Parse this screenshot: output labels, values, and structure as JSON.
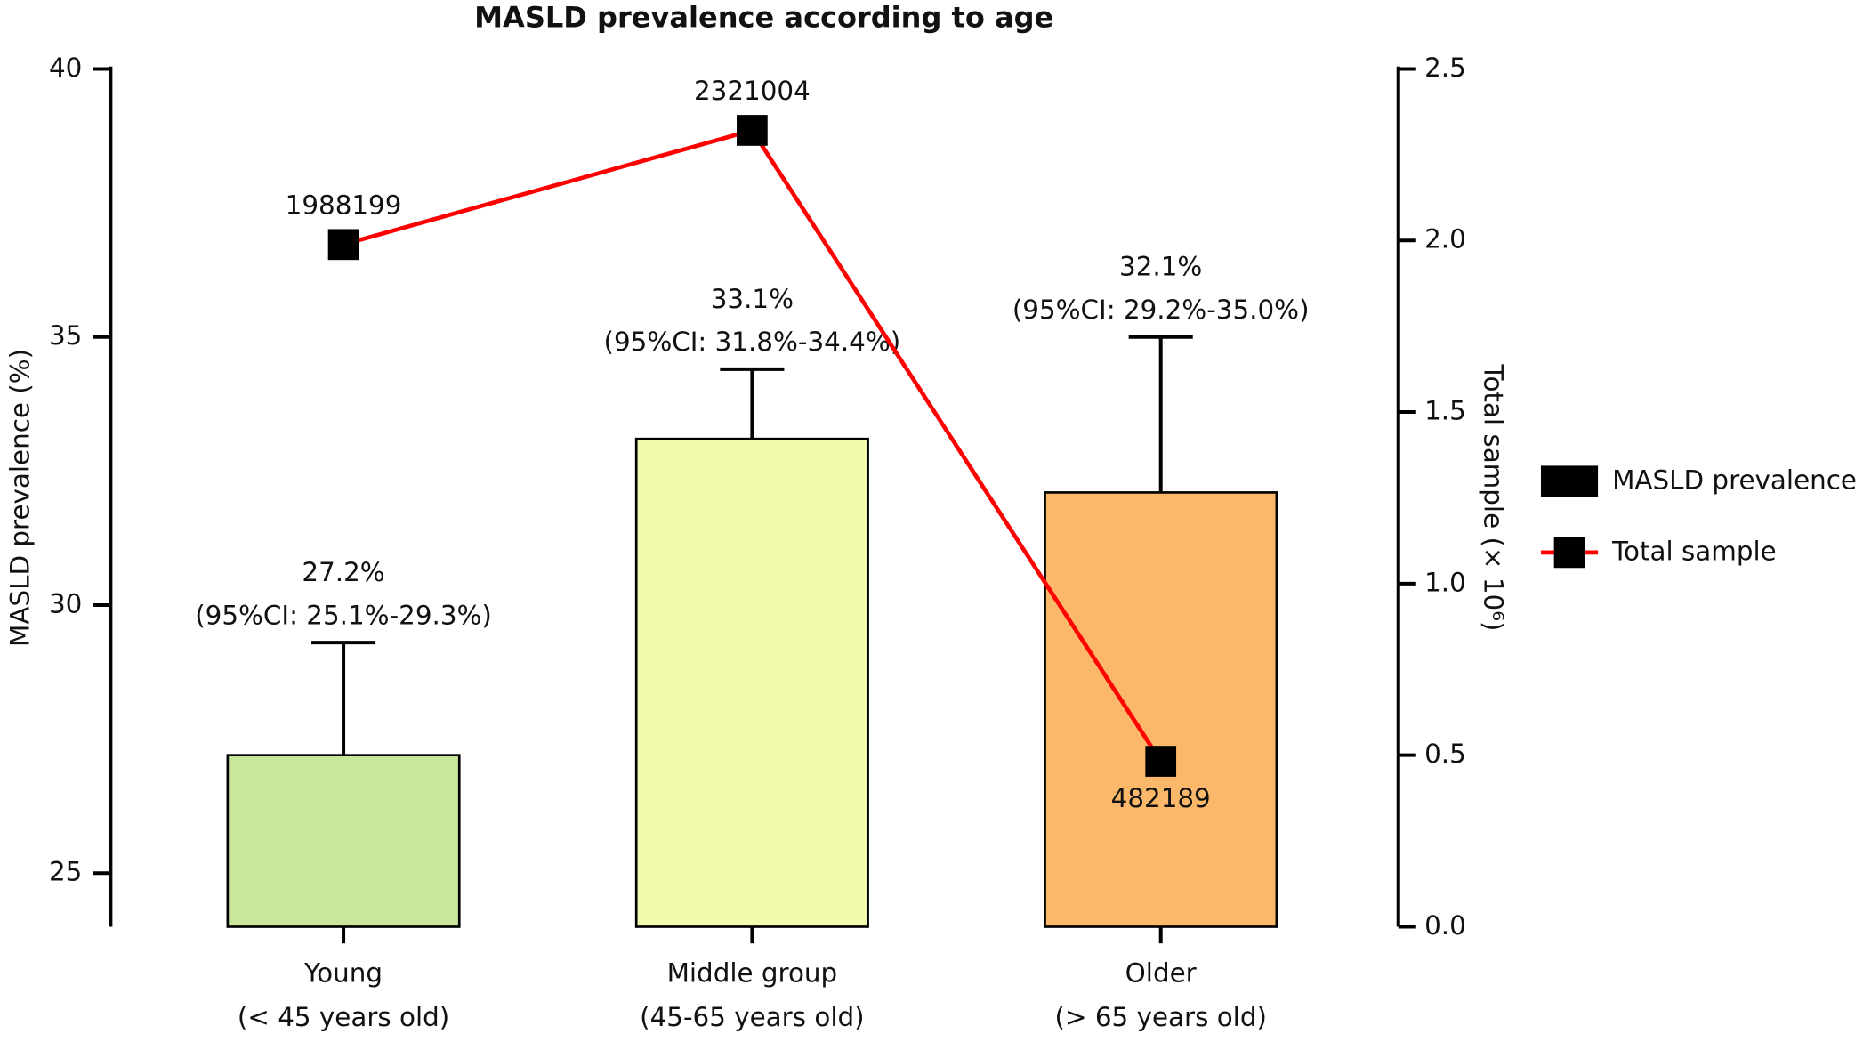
{
  "chart_data": {
    "type": "bar-line",
    "title": "MASLD prevalence according to age",
    "categories": [
      [
        "Young",
        "(< 45 years old)"
      ],
      [
        "Middle group",
        "(45-65 years old)"
      ],
      [
        "Older",
        "(> 65 years old)"
      ]
    ],
    "ylabel": "MASLD prevalence (%)",
    "y2label": "Total sample (× 10⁶)",
    "ylim": [
      24,
      40
    ],
    "yticks": [
      25,
      30,
      35,
      40
    ],
    "y2lim": [
      0,
      2500000
    ],
    "y2ticks": [
      {
        "value": 0,
        "label": "0.0"
      },
      {
        "value": 500000,
        "label": "0.5"
      },
      {
        "value": 1000000,
        "label": "1.0"
      },
      {
        "value": 1500000,
        "label": "1.5"
      },
      {
        "value": 2000000,
        "label": "2.0"
      },
      {
        "value": 2500000,
        "label": "2.5"
      }
    ],
    "legend": "right",
    "series": [
      {
        "name": "MASLD prevalence",
        "type": "bar",
        "colors": [
          "#c9e79a",
          "#f3f9ad",
          "#fbb86a"
        ],
        "values": [
          27.2,
          33.1,
          32.1
        ],
        "value_labels": [
          "27.2%",
          "33.1%",
          "32.1%"
        ],
        "ci_lower": [
          25.1,
          31.8,
          29.2
        ],
        "ci_upper": [
          29.3,
          34.4,
          35.0
        ],
        "ci_labels": [
          "(95%CI: 25.1%-29.3%)",
          "(95%CI: 31.8%-34.4%)",
          "(95%CI: 29.2%-35.0%)"
        ]
      },
      {
        "name": "Total sample",
        "type": "line",
        "axis": "y2",
        "color": "#ff0000",
        "values": [
          1988199,
          2321004,
          482189
        ]
      }
    ]
  }
}
